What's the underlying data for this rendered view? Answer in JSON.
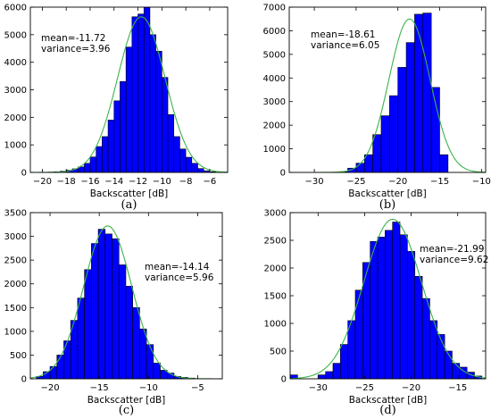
{
  "chart_data": [
    {
      "type": "bar",
      "panel_label": "(a)",
      "xlabel": "Backscatter [dB]",
      "ylabel": "",
      "xlim": [
        -21,
        -4.5
      ],
      "ylim": [
        0,
        6000
      ],
      "xticks": [
        -20,
        -18,
        -16,
        -14,
        -12,
        -10,
        -8,
        -6
      ],
      "xtick_labels": [
        "−20",
        "−18",
        "−16",
        "−14",
        "−12",
        "−10",
        "−8",
        "−6"
      ],
      "yticks": [
        0,
        1000,
        2000,
        3000,
        4000,
        5000,
        6000
      ],
      "ytick_labels": [
        "0",
        "1000",
        "2000",
        "3000",
        "4000",
        "5000",
        "6000"
      ],
      "stats": [
        "mean=-11.72",
        "variance=3.96"
      ],
      "stats_position": "top-left",
      "fit": {
        "mean": -11.72,
        "variance": 3.96,
        "peak": 5650
      },
      "bins": [
        {
          "x0": -19.5,
          "x1": -19.0,
          "y": 12
        },
        {
          "x0": -19.0,
          "x1": -18.5,
          "y": 25
        },
        {
          "x0": -18.5,
          "x1": -18.0,
          "y": 45
        },
        {
          "x0": -18.0,
          "x1": -17.5,
          "y": 80
        },
        {
          "x0": -17.5,
          "x1": -17.0,
          "y": 130
        },
        {
          "x0": -17.0,
          "x1": -16.5,
          "y": 200
        },
        {
          "x0": -16.5,
          "x1": -16.0,
          "y": 330
        },
        {
          "x0": -16.0,
          "x1": -15.5,
          "y": 560
        },
        {
          "x0": -15.5,
          "x1": -15.0,
          "y": 940
        },
        {
          "x0": -15.0,
          "x1": -14.5,
          "y": 1300
        },
        {
          "x0": -14.5,
          "x1": -14.0,
          "y": 1900
        },
        {
          "x0": -14.0,
          "x1": -13.5,
          "y": 2600
        },
        {
          "x0": -13.5,
          "x1": -13.0,
          "y": 3300
        },
        {
          "x0": -13.0,
          "x1": -12.5,
          "y": 4550
        },
        {
          "x0": -12.5,
          "x1": -12.0,
          "y": 5650
        },
        {
          "x0": -12.0,
          "x1": -11.5,
          "y": 5750
        },
        {
          "x0": -11.5,
          "x1": -11.0,
          "y": 6000
        },
        {
          "x0": -11.0,
          "x1": -10.5,
          "y": 5000
        },
        {
          "x0": -10.5,
          "x1": -10.0,
          "y": 4400
        },
        {
          "x0": -10.0,
          "x1": -9.5,
          "y": 3450
        },
        {
          "x0": -9.5,
          "x1": -9.0,
          "y": 2100
        },
        {
          "x0": -9.0,
          "x1": -8.5,
          "y": 1300
        },
        {
          "x0": -8.5,
          "x1": -8.0,
          "y": 850
        },
        {
          "x0": -8.0,
          "x1": -7.5,
          "y": 550
        },
        {
          "x0": -7.5,
          "x1": -7.0,
          "y": 330
        },
        {
          "x0": -7.0,
          "x1": -6.5,
          "y": 140
        },
        {
          "x0": -6.5,
          "x1": -6.0,
          "y": 60
        },
        {
          "x0": -6.0,
          "x1": -5.5,
          "y": 25
        }
      ]
    },
    {
      "type": "bar",
      "panel_label": "(b)",
      "xlabel": "Backscatter [dB]",
      "ylabel": "",
      "xlim": [
        -33,
        -9.5
      ],
      "ylim": [
        0,
        7000
      ],
      "xticks": [
        -30,
        -25,
        -20,
        -15,
        -10
      ],
      "xtick_labels": [
        "−30",
        "−25",
        "−20",
        "−15",
        "−10"
      ],
      "yticks": [
        0,
        1000,
        2000,
        3000,
        4000,
        5000,
        6000,
        7000
      ],
      "ytick_labels": [
        "0",
        "1000",
        "2000",
        "3000",
        "4000",
        "5000",
        "6000",
        "7000"
      ],
      "stats": [
        "mean=-18.61",
        "variance=6.05"
      ],
      "stats_position": "top-left",
      "fit": {
        "mean": -18.61,
        "variance": 6.05,
        "peak": 6500
      },
      "bins": [
        {
          "x0": -27.0,
          "x1": -26.0,
          "y": 30
        },
        {
          "x0": -26.0,
          "x1": -25.0,
          "y": 180
        },
        {
          "x0": -25.0,
          "x1": -24.0,
          "y": 390
        },
        {
          "x0": -24.0,
          "x1": -23.0,
          "y": 750
        },
        {
          "x0": -23.0,
          "x1": -22.0,
          "y": 1600
        },
        {
          "x0": -22.0,
          "x1": -21.0,
          "y": 2400
        },
        {
          "x0": -21.0,
          "x1": -20.0,
          "y": 3250
        },
        {
          "x0": -20.0,
          "x1": -19.0,
          "y": 4450
        },
        {
          "x0": -19.0,
          "x1": -18.0,
          "y": 5500
        },
        {
          "x0": -18.0,
          "x1": -17.0,
          "y": 6700
        },
        {
          "x0": -17.0,
          "x1": -16.0,
          "y": 6750
        },
        {
          "x0": -16.0,
          "x1": -15.0,
          "y": 3600
        },
        {
          "x0": -15.0,
          "x1": -14.0,
          "y": 750
        }
      ]
    },
    {
      "type": "bar",
      "panel_label": "(c)",
      "xlabel": "Backscatter [dB]",
      "ylabel": "",
      "xlim": [
        -22,
        -2.5
      ],
      "ylim": [
        0,
        3500
      ],
      "xticks": [
        -20,
        -15,
        -10,
        -5
      ],
      "xtick_labels": [
        "−20",
        "−15",
        "−10",
        "−5"
      ],
      "yticks": [
        0,
        500,
        1000,
        1500,
        2000,
        2500,
        3000,
        3500
      ],
      "ytick_labels": [
        "0",
        "500",
        "1000",
        "1500",
        "2000",
        "2500",
        "3000",
        "3500"
      ],
      "stats": [
        "mean=-14.14",
        "variance=5.96"
      ],
      "stats_position": "top-right",
      "fit": {
        "mean": -14.14,
        "variance": 5.96,
        "peak": 3220
      },
      "bins": [
        {
          "x0": -21.4,
          "x1": -20.7,
          "y": 50
        },
        {
          "x0": -20.7,
          "x1": -20.0,
          "y": 150
        },
        {
          "x0": -20.0,
          "x1": -19.3,
          "y": 260
        },
        {
          "x0": -19.3,
          "x1": -18.6,
          "y": 500
        },
        {
          "x0": -18.6,
          "x1": -17.9,
          "y": 800
        },
        {
          "x0": -17.9,
          "x1": -17.2,
          "y": 1230
        },
        {
          "x0": -17.2,
          "x1": -16.5,
          "y": 1700
        },
        {
          "x0": -16.5,
          "x1": -15.8,
          "y": 2300
        },
        {
          "x0": -15.8,
          "x1": -15.1,
          "y": 2850
        },
        {
          "x0": -15.1,
          "x1": -14.4,
          "y": 3150
        },
        {
          "x0": -14.4,
          "x1": -13.7,
          "y": 3050
        },
        {
          "x0": -13.7,
          "x1": -13.0,
          "y": 2950
        },
        {
          "x0": -13.0,
          "x1": -12.3,
          "y": 2400
        },
        {
          "x0": -12.3,
          "x1": -11.6,
          "y": 1950
        },
        {
          "x0": -11.6,
          "x1": -10.9,
          "y": 1500
        },
        {
          "x0": -10.9,
          "x1": -10.2,
          "y": 1050
        },
        {
          "x0": -10.2,
          "x1": -9.5,
          "y": 720
        },
        {
          "x0": -9.5,
          "x1": -8.8,
          "y": 330
        },
        {
          "x0": -8.8,
          "x1": -8.1,
          "y": 180
        },
        {
          "x0": -8.1,
          "x1": -7.4,
          "y": 120
        },
        {
          "x0": -7.4,
          "x1": -6.7,
          "y": 50
        },
        {
          "x0": -6.7,
          "x1": -6.0,
          "y": 30
        },
        {
          "x0": -6.0,
          "x1": -5.3,
          "y": 15
        }
      ]
    },
    {
      "type": "bar",
      "panel_label": "(d)",
      "xlabel": "Backscatter [dB]",
      "ylabel": "",
      "xlim": [
        -33,
        -12
      ],
      "ylim": [
        0,
        3000
      ],
      "xticks": [
        -30,
        -25,
        -20,
        -15
      ],
      "xtick_labels": [
        "−30",
        "−25",
        "−20",
        "−15"
      ],
      "yticks": [
        0,
        500,
        1000,
        1500,
        2000,
        2500,
        3000
      ],
      "ytick_labels": [
        "0",
        "500",
        "1000",
        "1500",
        "2000",
        "2500",
        "3000"
      ],
      "stats": [
        "mean=-21.99",
        "variance=9.62"
      ],
      "stats_position": "top-right",
      "fit": {
        "mean": -21.99,
        "variance": 9.62,
        "peak": 2880
      },
      "bins": [
        {
          "x0": -33.0,
          "x1": -32.2,
          "y": 70
        },
        {
          "x0": -30.0,
          "x1": -29.2,
          "y": 70
        },
        {
          "x0": -29.2,
          "x1": -28.4,
          "y": 130
        },
        {
          "x0": -28.4,
          "x1": -27.6,
          "y": 280
        },
        {
          "x0": -27.6,
          "x1": -26.8,
          "y": 620
        },
        {
          "x0": -26.8,
          "x1": -26.0,
          "y": 1050
        },
        {
          "x0": -26.0,
          "x1": -25.2,
          "y": 1600
        },
        {
          "x0": -25.2,
          "x1": -24.4,
          "y": 2100
        },
        {
          "x0": -24.4,
          "x1": -23.6,
          "y": 2480
        },
        {
          "x0": -23.6,
          "x1": -22.8,
          "y": 2560
        },
        {
          "x0": -22.8,
          "x1": -22.0,
          "y": 2680
        },
        {
          "x0": -22.0,
          "x1": -21.2,
          "y": 2830
        },
        {
          "x0": -21.2,
          "x1": -20.4,
          "y": 2600
        },
        {
          "x0": -20.4,
          "x1": -19.6,
          "y": 2300
        },
        {
          "x0": -19.6,
          "x1": -18.8,
          "y": 1850
        },
        {
          "x0": -18.8,
          "x1": -18.0,
          "y": 1450
        },
        {
          "x0": -18.0,
          "x1": -17.2,
          "y": 1050
        },
        {
          "x0": -17.2,
          "x1": -16.4,
          "y": 800
        },
        {
          "x0": -16.4,
          "x1": -15.6,
          "y": 500
        },
        {
          "x0": -15.6,
          "x1": -14.8,
          "y": 280
        },
        {
          "x0": -14.8,
          "x1": -14.0,
          "y": 210
        },
        {
          "x0": -14.0,
          "x1": -13.2,
          "y": 120
        },
        {
          "x0": -13.2,
          "x1": -12.4,
          "y": 50
        }
      ]
    }
  ],
  "colors": {
    "bar_fill": "#0000ff",
    "bar_edge": "#000000",
    "fit_line": "#3cb44b",
    "axes": "#000000",
    "background": "#ffffff"
  }
}
